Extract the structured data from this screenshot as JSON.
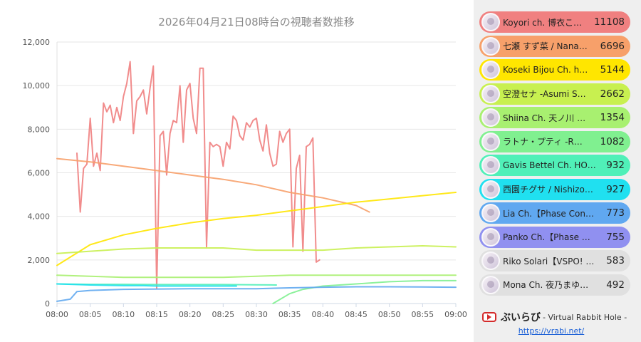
{
  "chart_data": {
    "type": "line",
    "title": "2026年04月21日08時台の視聴者数推移",
    "xlabel": "",
    "ylabel": "",
    "x_ticks": [
      "08:00",
      "08:05",
      "08:10",
      "08:15",
      "08:20",
      "08:25",
      "08:30",
      "08:35",
      "08:40",
      "08:45",
      "08:50",
      "08:55",
      "09:00"
    ],
    "xlim": [
      "08:00",
      "09:00"
    ],
    "ylim": [
      0,
      12000
    ],
    "y_ticks": [
      "0",
      "2,000",
      "4,000",
      "6,000",
      "8,000",
      "10,000",
      "12,000"
    ],
    "grid": true,
    "legend_position": "right",
    "series": [
      {
        "name": "Koyori ch. 博衣こ…",
        "legend_value": "11108",
        "color": "#f08080",
        "x": [
          "08:03",
          "08:03.5",
          "08:04",
          "08:04.5",
          "08:05",
          "08:05.5",
          "08:06",
          "08:06.5",
          "08:07",
          "08:07.5",
          "08:08",
          "08:08.5",
          "08:09",
          "08:09.5",
          "08:10",
          "08:10.5",
          "08:11",
          "08:11.5",
          "08:12",
          "08:12.5",
          "08:13",
          "08:13.5",
          "08:14",
          "08:14.5",
          "08:15",
          "08:15.5",
          "08:16",
          "08:16.5",
          "08:17",
          "08:17.5",
          "08:18",
          "08:18.5",
          "08:19",
          "08:19.5",
          "08:20",
          "08:20.5",
          "08:21",
          "08:21.5",
          "08:22",
          "08:22.5",
          "08:23",
          "08:23.5",
          "08:24",
          "08:24.5",
          "08:25",
          "08:25.5",
          "08:26",
          "08:26.5",
          "08:27",
          "08:27.5",
          "08:28",
          "08:28.5",
          "08:29",
          "08:29.5",
          "08:30",
          "08:30.5",
          "08:31",
          "08:31.5",
          "08:32",
          "08:32.5",
          "08:33",
          "08:33.5",
          "08:34",
          "08:34.5",
          "08:35",
          "08:35.5",
          "08:36",
          "08:36.5",
          "08:37",
          "08:37.5",
          "08:38",
          "08:38.5",
          "08:39",
          "08:39.5"
        ],
        "y": [
          6900,
          4200,
          6200,
          6400,
          8500,
          6300,
          6900,
          6100,
          9200,
          8800,
          9100,
          8300,
          9000,
          8400,
          9500,
          10100,
          11100,
          7800,
          9300,
          9500,
          9800,
          8700,
          9900,
          10900,
          700,
          7700,
          7900,
          5900,
          7800,
          8400,
          8300,
          10000,
          7400,
          9800,
          10100,
          8500,
          7800,
          10800,
          10800,
          2600,
          7400,
          7200,
          7300,
          7200,
          6300,
          7400,
          7100,
          8600,
          8400,
          7700,
          7500,
          8300,
          8100,
          8400,
          8500,
          7500,
          7000,
          8200,
          6900,
          6300,
          6400,
          7900,
          7400,
          7800,
          8000,
          2600,
          6200,
          6800,
          2400,
          7200,
          7300,
          7600,
          1900,
          2000
        ]
      },
      {
        "name": "七瀬 すず菜 / Nana…",
        "legend_value": "6696",
        "color": "#f7a06a",
        "x": [
          "08:00",
          "08:05",
          "08:10",
          "08:15",
          "08:20",
          "08:25",
          "08:30",
          "08:35",
          "08:40",
          "08:45",
          "08:46",
          "08:47"
        ],
        "y": [
          6650,
          6500,
          6300,
          6100,
          5900,
          5700,
          5450,
          5100,
          4850,
          4500,
          4350,
          4200
        ]
      },
      {
        "name": "Koseki Bijou Ch. h…",
        "legend_value": "5144",
        "color": "#ffe600",
        "x": [
          "08:00",
          "08:05",
          "08:10",
          "08:15",
          "08:20",
          "08:25",
          "08:30",
          "08:35",
          "08:40",
          "08:45",
          "08:50",
          "08:55",
          "09:00"
        ],
        "y": [
          1750,
          2700,
          3150,
          3450,
          3700,
          3900,
          4050,
          4250,
          4450,
          4650,
          4800,
          4950,
          5100
        ]
      },
      {
        "name": "空澄セナ -Asumi S…",
        "legend_value": "2662",
        "color": "#c8f050",
        "x": [
          "08:00",
          "08:05",
          "08:10",
          "08:15",
          "08:20",
          "08:25",
          "08:30",
          "08:35",
          "08:40",
          "08:45",
          "08:50",
          "08:55",
          "09:00"
        ],
        "y": [
          2300,
          2400,
          2500,
          2550,
          2550,
          2550,
          2450,
          2450,
          2450,
          2550,
          2600,
          2650,
          2600
        ]
      },
      {
        "name": "Shiina Ch. 天ノ川 …",
        "legend_value": "1354",
        "color": "#a8f070",
        "x": [
          "08:00",
          "08:05",
          "08:10",
          "08:15",
          "08:20",
          "08:25",
          "08:30",
          "08:35",
          "08:40",
          "08:45",
          "08:50",
          "08:55",
          "09:00"
        ],
        "y": [
          1300,
          1250,
          1200,
          1200,
          1200,
          1200,
          1250,
          1300,
          1300,
          1300,
          1300,
          1300,
          1300
        ]
      },
      {
        "name": "ラトナ・プティ -R…",
        "legend_value": "1082",
        "color": "#80f090",
        "x": [
          "08:32.5",
          "08:35",
          "08:37",
          "08:40",
          "08:45",
          "08:50",
          "08:55",
          "09:00"
        ],
        "y": [
          0,
          450,
          650,
          800,
          900,
          1000,
          1050,
          1050
        ]
      },
      {
        "name": "Gavis Bettel Ch. HO…",
        "legend_value": "932",
        "color": "#50f0b8",
        "x": [
          "08:00",
          "08:05",
          "08:10",
          "08:15",
          "08:20",
          "08:25",
          "08:30",
          "08:33"
        ],
        "y": [
          900,
          880,
          880,
          870,
          870,
          870,
          860,
          850
        ]
      },
      {
        "name": "西園チグサ / Nishizo…",
        "legend_value": "927",
        "color": "#20e0f0",
        "x": [
          "08:00",
          "08:05",
          "08:10",
          "08:13",
          "08:15",
          "08:20",
          "08:25",
          "08:27"
        ],
        "y": [
          900,
          850,
          820,
          820,
          800,
          800,
          800,
          800
        ]
      },
      {
        "name": "Lia Ch.【Phase Con…",
        "legend_value": "773",
        "color": "#60a8f0",
        "x": [
          "08:00",
          "08:01",
          "08:02",
          "08:03",
          "08:05",
          "08:10",
          "08:20",
          "08:30",
          "08:35",
          "08:40",
          "08:45",
          "08:50",
          "08:55",
          "09:00"
        ],
        "y": [
          100,
          150,
          200,
          550,
          600,
          650,
          680,
          680,
          720,
          750,
          770,
          770,
          760,
          750
        ]
      },
      {
        "name": "Panko Ch.【Phase …",
        "legend_value": "755",
        "color": "#9090f0",
        "x": [],
        "y": []
      },
      {
        "name": "Riko Solari【VSPO! …",
        "legend_value": "583",
        "color": "#c8c8c8",
        "x": [],
        "y": []
      },
      {
        "name": "Mona Ch. 夜乃まゆ…",
        "legend_value": "492",
        "color": "#c8c8c8",
        "x": [],
        "y": []
      }
    ]
  },
  "legend_colors": [
    "#f08080",
    "#f7a06a",
    "#ffe600",
    "#c8f050",
    "#a8f070",
    "#80f090",
    "#50f0b8",
    "#20e0f0",
    "#60a8f0",
    "#9090f0",
    "#e0e0e0",
    "#e0e0e0"
  ],
  "footer": {
    "brand_name": "ぶいらび",
    "brand_sub": "- Virtual Rabbit Hole -",
    "url": "https://vrabi.net/"
  }
}
